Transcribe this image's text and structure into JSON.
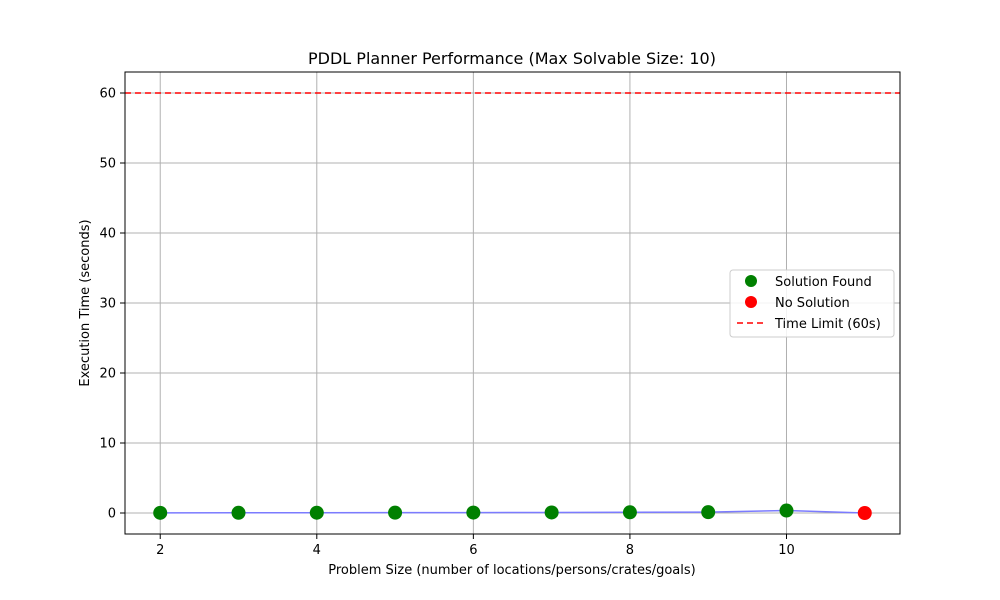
{
  "chart_data": {
    "type": "scatter",
    "title": "PDDL Planner Performance (Max Solvable Size: 10)",
    "xlabel": "Problem Size (number of locations/persons/crates/goals)",
    "ylabel": "Execution Time (seconds)",
    "xlim": [
      1.55,
      11.45
    ],
    "ylim": [
      -3.0,
      63.0
    ],
    "x_ticks": [
      2,
      4,
      6,
      8,
      10
    ],
    "y_ticks": [
      0,
      10,
      20,
      30,
      40,
      50,
      60
    ],
    "grid": true,
    "legend_position": "center-right",
    "series": [
      {
        "name": "Solution Found",
        "kind": "marker",
        "color": "#008000",
        "x": [
          2,
          3,
          4,
          5,
          6,
          7,
          8,
          9,
          10
        ],
        "y": [
          0.02,
          0.03,
          0.04,
          0.05,
          0.06,
          0.08,
          0.1,
          0.12,
          0.35
        ]
      },
      {
        "name": "No Solution",
        "kind": "marker",
        "color": "#ff0000",
        "x": [
          11
        ],
        "y": [
          0.0
        ]
      },
      {
        "name": "Time Limit (60s)",
        "kind": "hline",
        "color": "#ff0000",
        "linestyle": "dashed",
        "y": 60
      }
    ],
    "trend_line": {
      "color": "#7b7bff",
      "x": [
        2,
        3,
        4,
        5,
        6,
        7,
        8,
        9,
        10,
        11
      ],
      "y": [
        0.02,
        0.03,
        0.04,
        0.05,
        0.06,
        0.08,
        0.1,
        0.12,
        0.35,
        0.0
      ]
    }
  }
}
